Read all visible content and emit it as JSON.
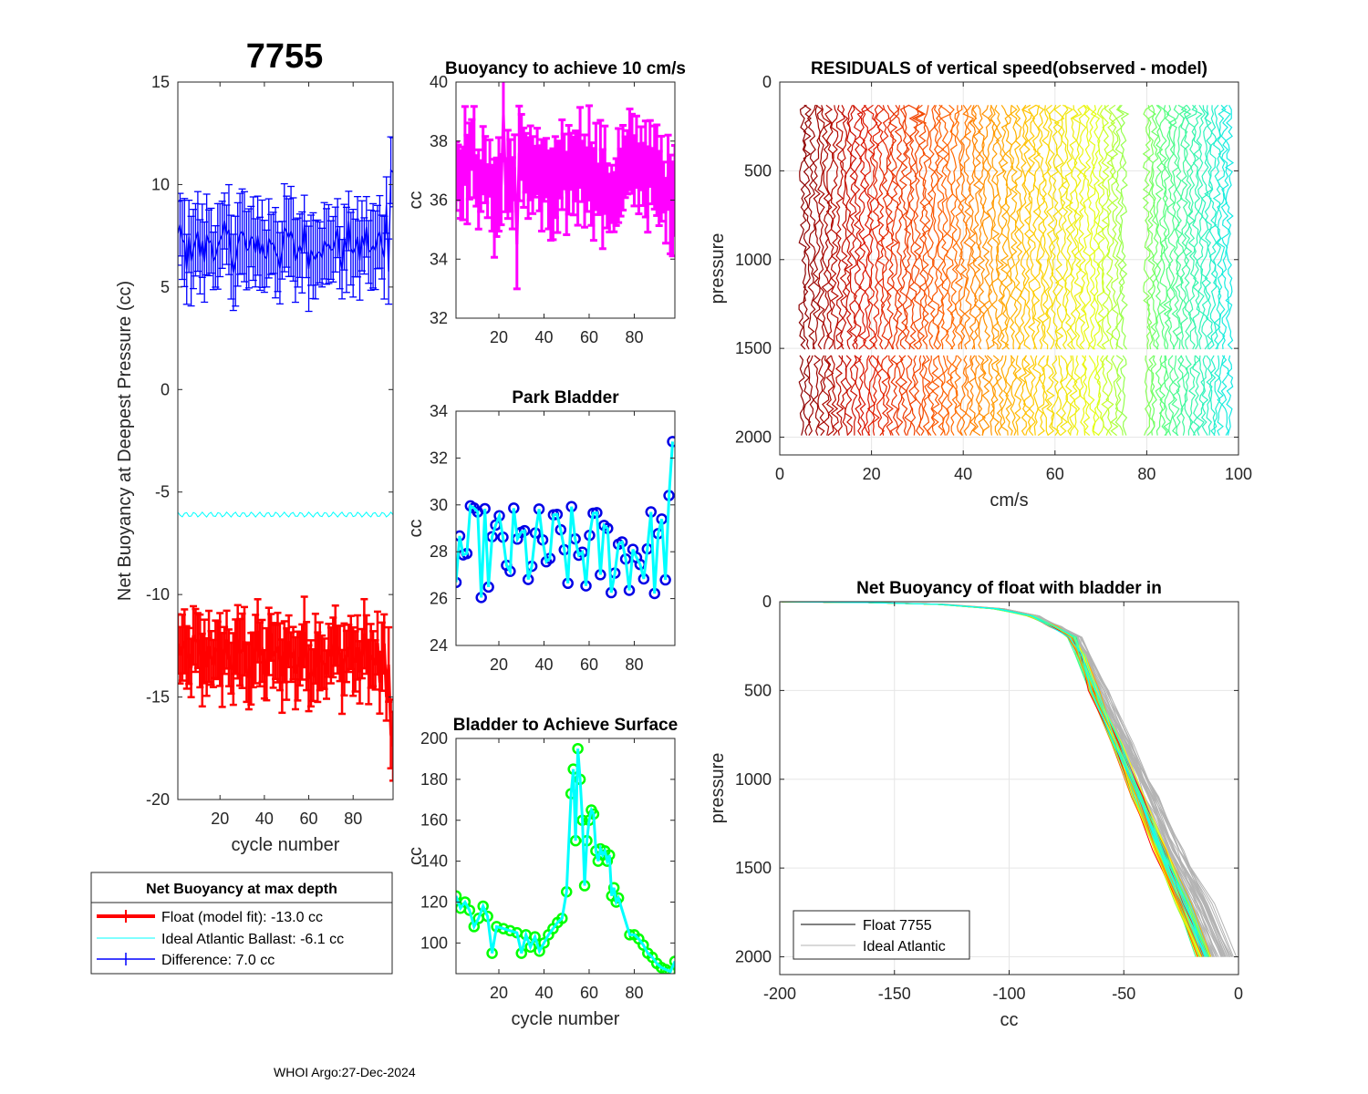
{
  "figure_title": "7755",
  "footer": "WHOI Argo:27-Dec-2024",
  "legend1": {
    "title": "Net Buoyancy at max depth",
    "items": [
      "Float (model fit): -13.0 cc",
      "Ideal Atlantic Ballast:  -6.1 cc",
      "Difference:   7.0 cc"
    ]
  },
  "legend2": {
    "items": [
      "Float 7755",
      "Ideal Atlantic"
    ]
  },
  "colors": {
    "float": "#ff0000",
    "ideal": "#00ffff",
    "difference": "#0000ff",
    "magenta": "#ff00ff",
    "park_marker": "#0000e6",
    "surface_marker": "#00ff00",
    "gray": "#b3b3b3"
  },
  "chart_data": [
    {
      "id": "net-buoyancy",
      "type": "line",
      "title": "",
      "xlabel": "cycle number",
      "ylabel": "Net Buoyancy at Deepest Pressure (cc)",
      "xlim": [
        1,
        98
      ],
      "ylim": [
        -20,
        15
      ],
      "xticks": [
        20,
        40,
        60,
        80
      ],
      "yticks": [
        -20,
        -15,
        -10,
        -5,
        0,
        5,
        10,
        15
      ],
      "series": [
        {
          "name": "Float (model fit)",
          "base": -13.0,
          "amp": 1.0,
          "err": 1.4,
          "trend": [
            [
              92,
              -14.3
            ],
            [
              95,
              -15.0
            ],
            [
              97,
              -16.8
            ],
            [
              98,
              -17.4
            ]
          ]
        },
        {
          "name": "Ideal Atlantic Ballast",
          "base": -6.1,
          "amp": 0.12,
          "err": 0
        },
        {
          "name": "Difference",
          "base": 7.0,
          "amp": 1.0,
          "err": 1.7,
          "trend": [
            [
              95,
              9.0
            ],
            [
              97,
              10.7
            ],
            [
              98,
              10.6
            ]
          ]
        }
      ]
    },
    {
      "id": "buoyancy-10cms",
      "type": "line",
      "title": "Buoyancy to achieve 10 cm/s",
      "xlabel": "",
      "ylabel": "cc",
      "xlim": [
        1,
        98
      ],
      "ylim": [
        32,
        40
      ],
      "xticks": [
        20,
        40,
        60,
        80
      ],
      "yticks": [
        32,
        34,
        36,
        38,
        40
      ],
      "series": [
        {
          "name": "buoyancy",
          "base": 36.8,
          "amp": 0.9,
          "err": 1.4,
          "dip": [
            [
              28,
              34.5
            ]
          ],
          "peak": [
            [
              22,
              38.9
            ]
          ]
        }
      ]
    },
    {
      "id": "park-bladder",
      "type": "line",
      "title": "Park Bladder",
      "xlabel": "",
      "ylabel": "cc",
      "xlim": [
        1,
        98
      ],
      "ylim": [
        24,
        34
      ],
      "xticks": [
        20,
        40,
        60,
        80
      ],
      "yticks": [
        24,
        26,
        28,
        30,
        32,
        34
      ],
      "series": [
        {
          "name": "park bladder",
          "base": 28.0,
          "amp": 2.0,
          "end": [
            [
              96,
              26.8
            ],
            [
              97,
              30.4
            ],
            [
              98,
              32.7
            ]
          ]
        }
      ]
    },
    {
      "id": "bladder-surface",
      "type": "line",
      "title": "Bladder to Achieve Surface",
      "xlabel": "cycle number",
      "ylabel": "cc",
      "xlim": [
        1,
        98
      ],
      "ylim": [
        85,
        200
      ],
      "xticks": [
        20,
        40,
        60,
        80
      ],
      "yticks": [
        100,
        120,
        140,
        160,
        180,
        200
      ],
      "series": [
        {
          "name": "bladder to surface",
          "points": [
            [
              1,
              123
            ],
            [
              3,
              117
            ],
            [
              5,
              120
            ],
            [
              7,
              116
            ],
            [
              9,
              108
            ],
            [
              11,
              112
            ],
            [
              13,
              118
            ],
            [
              15,
              113
            ],
            [
              17,
              95
            ],
            [
              19,
              108
            ],
            [
              22,
              107
            ],
            [
              25,
              106
            ],
            [
              28,
              105
            ],
            [
              30,
              95
            ],
            [
              32,
              104
            ],
            [
              34,
              98
            ],
            [
              36,
              103
            ],
            [
              38,
              96
            ],
            [
              40,
              100
            ],
            [
              42,
              104
            ],
            [
              44,
              107
            ],
            [
              46,
              110
            ],
            [
              48,
              112
            ],
            [
              50,
              125
            ],
            [
              52,
              173
            ],
            [
              53,
              185
            ],
            [
              54,
              150
            ],
            [
              55,
              195
            ],
            [
              56,
              180
            ],
            [
              57,
              160
            ],
            [
              58,
              128
            ],
            [
              59,
              150
            ],
            [
              60,
              160
            ],
            [
              61,
              165
            ],
            [
              62,
              163
            ],
            [
              63,
              145
            ],
            [
              64,
              140
            ],
            [
              65,
              146
            ],
            [
              66,
              143
            ],
            [
              67,
              145
            ],
            [
              68,
              140
            ],
            [
              69,
              143
            ],
            [
              70,
              123
            ],
            [
              71,
              127
            ],
            [
              72,
              120
            ],
            [
              73,
              122
            ],
            [
              78,
              104
            ],
            [
              80,
              104
            ],
            [
              82,
              102
            ],
            [
              84,
              99
            ],
            [
              86,
              95
            ],
            [
              88,
              93
            ],
            [
              90,
              90
            ],
            [
              92,
              88
            ],
            [
              94,
              87
            ],
            [
              96,
              86
            ],
            [
              98,
              91
            ]
          ]
        }
      ]
    },
    {
      "id": "residuals",
      "type": "line",
      "title": "RESIDUALS of vertical speed(observed - model)",
      "xlabel": "cm/s",
      "ylabel": "pressure",
      "xlim": [
        0,
        100
      ],
      "ylim": [
        0,
        2100
      ],
      "y_reversed": true,
      "xticks": [
        0,
        20,
        40,
        60,
        80,
        100
      ],
      "yticks": [
        0,
        500,
        1000,
        1500,
        2000
      ],
      "profiles": {
        "count": 92,
        "x_start": 5,
        "x_step": 1.0,
        "gap_after": 75,
        "x_resume": 80,
        "p_top": 130,
        "p_gap": [
          1510,
          1540
        ],
        "p_bottom": 2000
      }
    },
    {
      "id": "net-buoyancy-bladder",
      "type": "line",
      "title": "Net Buoyancy of float with bladder in",
      "xlabel": "cc",
      "ylabel": "pressure",
      "xlim": [
        -200,
        0
      ],
      "ylim": [
        0,
        2100
      ],
      "y_reversed": true,
      "xticks": [
        -200,
        -150,
        -100,
        -50,
        0
      ],
      "yticks": [
        0,
        500,
        1000,
        1500,
        2000
      ],
      "legend": [
        "Float 7755",
        "Ideal Atlantic"
      ],
      "curve": [
        [
          -200,
          0
        ],
        [
          -160,
          5
        ],
        [
          -130,
          15
        ],
        [
          -105,
          40
        ],
        [
          -90,
          80
        ],
        [
          -80,
          140
        ],
        [
          -72,
          200
        ],
        [
          -68,
          300
        ],
        [
          -62,
          500
        ],
        [
          -52,
          800
        ],
        [
          -42,
          1100
        ],
        [
          -32,
          1400
        ],
        [
          -22,
          1700
        ],
        [
          -12,
          2000
        ]
      ]
    }
  ]
}
